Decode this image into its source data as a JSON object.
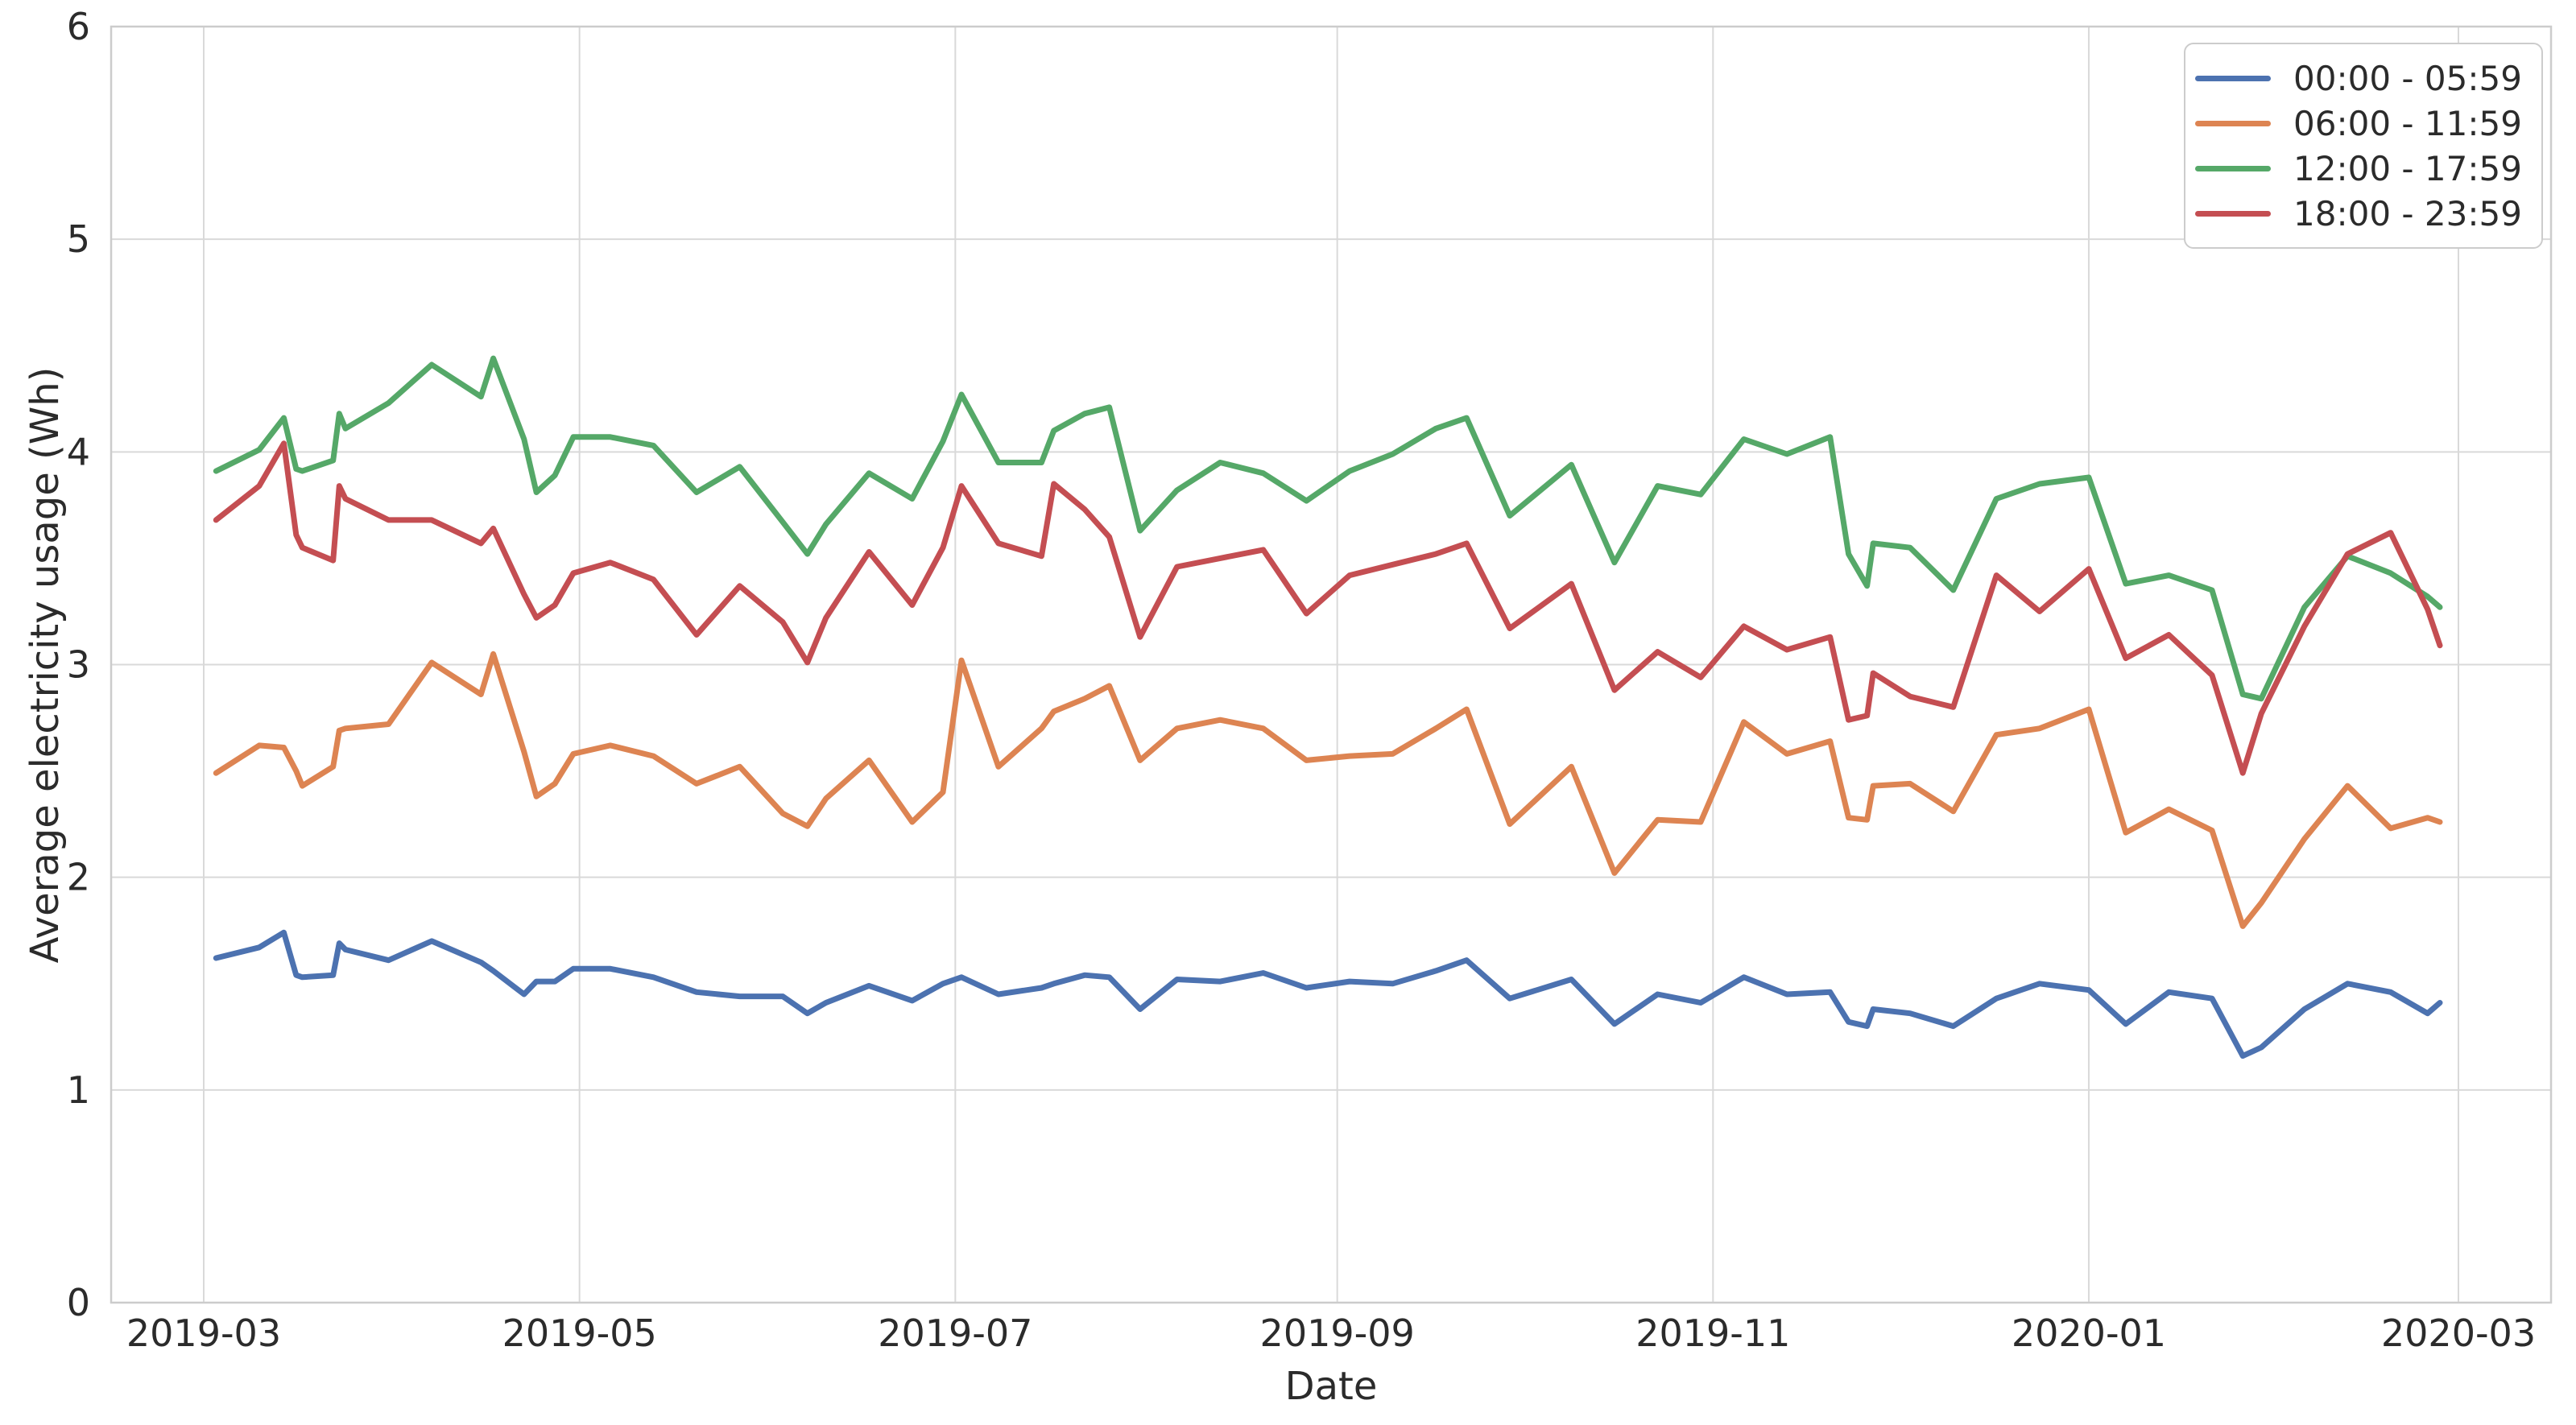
{
  "chart_data": {
    "type": "line",
    "title": "",
    "xlabel": "Date",
    "ylabel": "Average electricity usage (Wh)",
    "ylim": [
      0,
      6
    ],
    "yticks": [
      "0",
      "1",
      "2",
      "3",
      "4",
      "5",
      "6"
    ],
    "xticks": [
      "2019-03",
      "2019-05",
      "2019-07",
      "2019-09",
      "2019-11",
      "2020-01",
      "2020-03"
    ],
    "grid": true,
    "legend_position": "upper right",
    "x_dates": [
      "2019-03-03",
      "2019-03-10",
      "2019-03-14",
      "2019-03-16",
      "2019-03-17",
      "2019-03-22",
      "2019-03-23",
      "2019-03-24",
      "2019-03-31",
      "2019-04-07",
      "2019-04-15",
      "2019-04-17",
      "2019-04-22",
      "2019-04-24",
      "2019-04-27",
      "2019-04-30",
      "2019-05-06",
      "2019-05-13",
      "2019-05-20",
      "2019-05-27",
      "2019-06-03",
      "2019-06-07",
      "2019-06-10",
      "2019-06-17",
      "2019-06-24",
      "2019-06-29",
      "2019-07-02",
      "2019-07-08",
      "2019-07-15",
      "2019-07-17",
      "2019-07-22",
      "2019-07-26",
      "2019-07-31",
      "2019-08-06",
      "2019-08-13",
      "2019-08-20",
      "2019-08-27",
      "2019-09-03",
      "2019-09-10",
      "2019-09-17",
      "2019-09-22",
      "2019-09-29",
      "2019-10-09",
      "2019-10-16",
      "2019-10-23",
      "2019-10-30",
      "2019-11-06",
      "2019-11-13",
      "2019-11-20",
      "2019-11-23",
      "2019-11-26",
      "2019-11-27",
      "2019-12-03",
      "2019-12-10",
      "2019-12-17",
      "2019-12-24",
      "2020-01-01",
      "2020-01-07",
      "2020-01-14",
      "2020-01-21",
      "2020-01-26",
      "2020-01-29",
      "2020-02-05",
      "2020-02-12",
      "2020-02-19",
      "2020-02-25",
      "2020-02-27"
    ],
    "series": [
      {
        "name": "00:00 - 05:59",
        "color": "#4C72B0",
        "values": [
          1.62,
          1.67,
          1.74,
          1.54,
          1.53,
          1.54,
          1.69,
          1.66,
          1.61,
          1.7,
          1.6,
          1.56,
          1.45,
          1.51,
          1.51,
          1.57,
          1.57,
          1.53,
          1.46,
          1.44,
          1.44,
          1.36,
          1.41,
          1.49,
          1.42,
          1.5,
          1.53,
          1.45,
          1.48,
          1.5,
          1.54,
          1.53,
          1.38,
          1.52,
          1.51,
          1.55,
          1.48,
          1.51,
          1.5,
          1.56,
          1.61,
          1.43,
          1.52,
          1.31,
          1.45,
          1.41,
          1.53,
          1.45,
          1.46,
          1.32,
          1.3,
          1.38,
          1.36,
          1.3,
          1.43,
          1.5,
          1.47,
          1.31,
          1.46,
          1.43,
          1.16,
          1.2,
          1.38,
          1.5,
          1.46,
          1.36,
          1.41
        ]
      },
      {
        "name": "06:00 - 11:59",
        "color": "#DD8452",
        "values": [
          2.49,
          2.62,
          2.61,
          2.5,
          2.43,
          2.52,
          2.69,
          2.7,
          2.72,
          3.01,
          2.86,
          3.05,
          2.59,
          2.38,
          2.44,
          2.58,
          2.62,
          2.57,
          2.44,
          2.52,
          2.3,
          2.24,
          2.37,
          2.55,
          2.26,
          2.4,
          3.02,
          2.52,
          2.7,
          2.78,
          2.84,
          2.9,
          2.55,
          2.7,
          2.74,
          2.7,
          2.55,
          2.57,
          2.58,
          2.7,
          2.79,
          2.25,
          2.52,
          2.02,
          2.27,
          2.26,
          2.73,
          2.58,
          2.64,
          2.28,
          2.27,
          2.43,
          2.44,
          2.31,
          2.67,
          2.7,
          2.79,
          2.21,
          2.32,
          2.22,
          1.77,
          1.88,
          2.18,
          2.43,
          2.23,
          2.28,
          2.26
        ]
      },
      {
        "name": "12:00 - 17:59",
        "color": "#55A868",
        "values": [
          3.91,
          4.01,
          4.16,
          3.92,
          3.91,
          3.96,
          4.18,
          4.11,
          4.23,
          4.41,
          4.26,
          4.44,
          4.06,
          3.81,
          3.89,
          4.07,
          4.07,
          4.03,
          3.81,
          3.93,
          3.67,
          3.52,
          3.66,
          3.9,
          3.78,
          4.05,
          4.27,
          3.95,
          3.95,
          4.1,
          4.18,
          4.21,
          3.63,
          3.82,
          3.95,
          3.9,
          3.77,
          3.91,
          3.99,
          4.11,
          4.16,
          3.7,
          3.94,
          3.48,
          3.84,
          3.8,
          4.06,
          3.99,
          4.07,
          3.52,
          3.37,
          3.57,
          3.55,
          3.35,
          3.78,
          3.85,
          3.88,
          3.38,
          3.42,
          3.35,
          2.86,
          2.84,
          3.27,
          3.51,
          3.43,
          3.32,
          3.27
        ]
      },
      {
        "name": "18:00 - 23:59",
        "color": "#C44E52",
        "values": [
          3.68,
          3.84,
          4.04,
          3.61,
          3.55,
          3.49,
          3.84,
          3.78,
          3.68,
          3.68,
          3.57,
          3.64,
          3.33,
          3.22,
          3.28,
          3.43,
          3.48,
          3.4,
          3.14,
          3.37,
          3.2,
          3.01,
          3.22,
          3.53,
          3.28,
          3.55,
          3.84,
          3.57,
          3.51,
          3.85,
          3.73,
          3.6,
          3.13,
          3.46,
          3.5,
          3.54,
          3.24,
          3.42,
          3.47,
          3.52,
          3.57,
          3.17,
          3.38,
          2.88,
          3.06,
          2.94,
          3.18,
          3.07,
          3.13,
          2.74,
          2.76,
          2.96,
          2.85,
          2.8,
          3.42,
          3.25,
          3.45,
          3.03,
          3.14,
          2.95,
          2.49,
          2.77,
          3.18,
          3.52,
          3.62,
          3.26,
          3.09
        ]
      }
    ],
    "style": {
      "background": "#ffffff",
      "grid_color": "#d9d9d9",
      "spine_color": "#cccccc",
      "text_color": "#2b2b2b",
      "line_width": 7
    }
  }
}
